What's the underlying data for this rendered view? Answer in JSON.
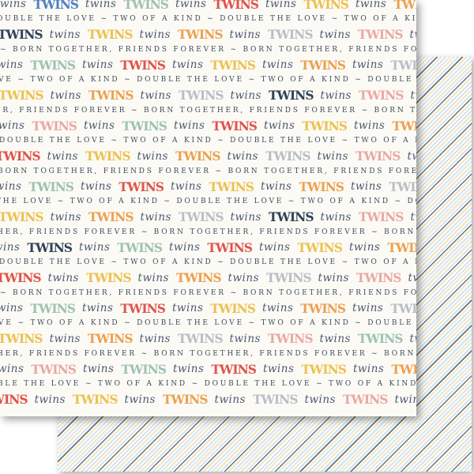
{
  "words": {
    "slab": "TWINS",
    "script": "twins"
  },
  "palette": {
    "navy": "#2f4158",
    "blue": "#4e7fc1",
    "teal": "#9ec2b2",
    "red": "#e0534a",
    "gold": "#ecc14f",
    "orange": "#eda04f",
    "silver": "#b9bec6",
    "pink": "#eaa8a4"
  },
  "text_colors": {
    "script": "#4d5970",
    "caps": "#3e4b5c"
  },
  "phrases": {
    "love_kind": "DOUBLE THE LOVE ~ TWO OF A KIND",
    "born_forever": "BORN TOGETHER, FRIENDS FOREVER"
  },
  "front_sheet": {
    "bg": "#fbfaf5",
    "rows": [
      {
        "type": "big",
        "start": "script",
        "colors": [
          "blue",
          "teal",
          "red",
          "gold",
          "orange",
          "silver"
        ],
        "indent": -6,
        "mt": -7
      },
      {
        "type": "small",
        "text": "OUBLE THE LOVE ~ TWO OF A KIND ~ DOUBLE THE LOVE ~ TWO OF A KIND ~ DO",
        "indent": -4
      },
      {
        "type": "big",
        "start": "slab",
        "colors": [
          "navy",
          "gold",
          "orange",
          "silver",
          "pink",
          "teal"
        ],
        "indent": -3
      },
      {
        "type": "small",
        "text": "~ BORN TOGETHER, FRIENDS FOREVER ~ BORN TOGETHER, FRIENDS FOREVER ~ B",
        "indent": 0
      },
      {
        "type": "big",
        "start": "script",
        "colors": [
          "teal",
          "red",
          "gold",
          "orange",
          "silver",
          "blue"
        ],
        "indent": -10
      },
      {
        "type": "small",
        "text": "VE ~ TWO OF A KIND ~ DOUBLE THE LOVE ~ TWO OF A KIND ~ DOUBLE THE LOV",
        "indent": -2
      },
      {
        "type": "big",
        "start": "slab",
        "colors": [
          "gold",
          "orange",
          "silver",
          "navy",
          "pink",
          "red"
        ],
        "indent": -2
      },
      {
        "type": "small",
        "text": "ER, FRIENDS FOREVER ~ BORN TOGETHER, FRIENDS FOREVER ~ BORN TOGETHER,",
        "indent": -6
      },
      {
        "type": "big",
        "start": "script",
        "colors": [
          "pink",
          "teal",
          "red",
          "gold",
          "orange",
          "silver"
        ],
        "indent": -8
      },
      {
        "type": "small",
        "text": "DOUBLE THE LOVE ~ TWO OF A KIND ~ DOUBLE THE LOVE ~ TWO OF A KIND ~ D",
        "indent": -1
      },
      {
        "type": "big",
        "start": "slab",
        "colors": [
          "red",
          "gold",
          "orange",
          "silver",
          "pink",
          "teal"
        ],
        "indent": -6
      },
      {
        "type": "small",
        "text": "BORN TOGETHER, FRIENDS FOREVER ~ BORN TOGETHER, FRIENDS FOREVER ~ BOR",
        "indent": -3
      },
      {
        "type": "big",
        "start": "script",
        "colors": [
          "teal",
          "red",
          "gold",
          "orange",
          "silver",
          "blue"
        ],
        "indent": -12
      },
      {
        "type": "small",
        "text": "THE LOVE ~ TWO OF A KIND ~ DOUBLE THE LOVE ~ TWO OF A KIND ~ DOUBLE T",
        "indent": -5
      },
      {
        "type": "big",
        "start": "slab",
        "colors": [
          "gold",
          "orange",
          "silver",
          "navy",
          "pink",
          "red"
        ],
        "indent": -2
      },
      {
        "type": "small",
        "text": "HER, FRIENDS FOREVER ~ BORN TOGETHER, FRIENDS FOREVER ~ BORN TOGETHER",
        "indent": -4
      },
      {
        "type": "big",
        "start": "script",
        "colors": [
          "navy",
          "teal",
          "red",
          "gold",
          "orange",
          "silver"
        ],
        "indent": -14
      },
      {
        "type": "small",
        "text": "DOUBLE THE LOVE ~ TWO OF A KIND ~ DOUBLE THE LOVE ~ TWO OF A KIND ~ D",
        "indent": -1
      },
      {
        "type": "big",
        "start": "slab",
        "colors": [
          "red",
          "gold",
          "orange",
          "silver",
          "pink",
          "teal"
        ],
        "indent": -5
      },
      {
        "type": "small",
        "text": "~ BORN TOGETHER, FRIENDS FOREVER ~ BORN TOGETHER, FRIENDS FOREVER ~ B",
        "indent": 0
      },
      {
        "type": "big",
        "start": "script",
        "colors": [
          "teal",
          "red",
          "gold",
          "orange",
          "silver",
          "blue"
        ],
        "indent": -10
      },
      {
        "type": "small",
        "text": "VE ~ TWO OF A KIND ~ DOUBLE THE LOVE ~ TWO OF A KIND ~ DOUBLE THE LOV",
        "indent": -2
      },
      {
        "type": "big",
        "start": "slab",
        "colors": [
          "gold",
          "orange",
          "silver",
          "pink",
          "teal",
          "red"
        ],
        "indent": -3
      },
      {
        "type": "small",
        "text": "HER, FRIENDS FOREVER ~ BORN TOGETHER, FRIENDS FOREVER ~ BORN TOGETHER",
        "indent": -4
      },
      {
        "type": "big",
        "start": "script",
        "colors": [
          "pink",
          "teal",
          "red",
          "gold",
          "orange",
          "silver"
        ],
        "indent": -9
      },
      {
        "type": "small",
        "text": "BLE THE LOVE ~ TWO OF A KIND ~ DOUBLE THE LOVE ~ TWO OF A KIND ~ DOUB",
        "indent": -3
      },
      {
        "type": "big",
        "start": "slab",
        "colors": [
          "red",
          "gold",
          "orange",
          "silver",
          "pink",
          "teal"
        ],
        "indent": -22
      }
    ]
  },
  "back_sheet": {
    "bg": "#ffffff",
    "stripe_direction": "diagonal-bottom-left-to-top-right",
    "stripe_colors": {
      "dark": "#68707e",
      "cream": "#f1e6c2",
      "blue": "#d2e5ee",
      "gray": "#dbdae2",
      "base": "#ffffff"
    }
  }
}
